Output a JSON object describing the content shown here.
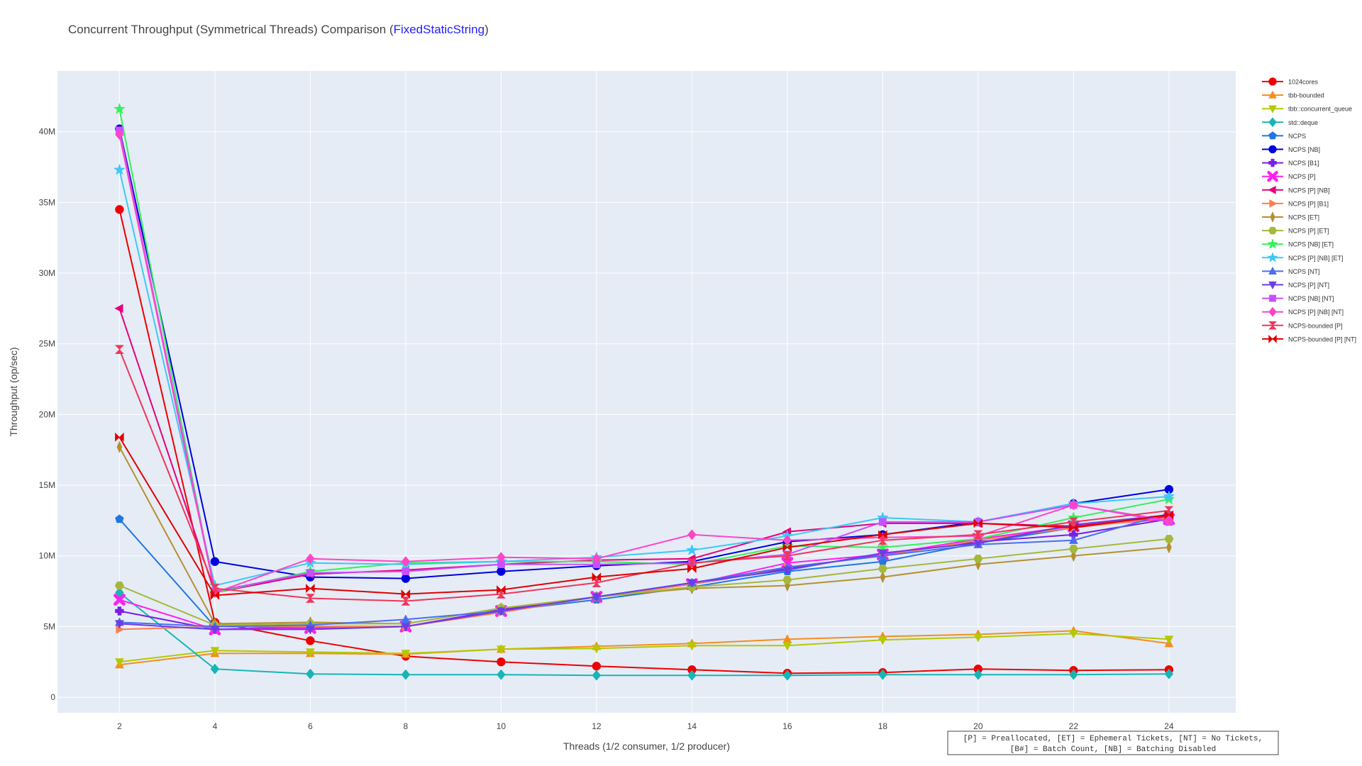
{
  "title": {
    "prefix": "Concurrent Throughput (Symmetrical Threads) Comparison (",
    "accent": "FixedStaticString",
    "suffix": ")",
    "accent_color": "#1f1fff"
  },
  "footnote": {
    "line1": "[P] = Preallocated, [ET] = Ephemeral Tickets, [NT] = No Tickets,",
    "line2": "[B#] = Batch Count, [NB] = Batching Disabled"
  },
  "chart_data": {
    "type": "line",
    "title": "Concurrent Throughput (Symmetrical Threads) Comparison (FixedStaticString)",
    "xlabel": "Threads (1/2 consumer, 1/2 producer)",
    "ylabel": "Throughput (op/sec)",
    "x": [
      2,
      4,
      6,
      8,
      10,
      12,
      14,
      16,
      18,
      20,
      22,
      24
    ],
    "xticks": [
      "2",
      "4",
      "6",
      "8",
      "10",
      "12",
      "14",
      "16",
      "18",
      "20",
      "22",
      "24"
    ],
    "xlim": [
      0.7,
      25.4
    ],
    "yticks": [
      0,
      5000000,
      10000000,
      15000000,
      20000000,
      25000000,
      30000000,
      35000000,
      40000000
    ],
    "ytick_labels": [
      "0",
      "5M",
      "10M",
      "15M",
      "20M",
      "25M",
      "30M",
      "35M",
      "40M"
    ],
    "ylim": [
      -1100000,
      44300000
    ],
    "grid": true,
    "legend_position": "right",
    "plot_bg": "#e5ecf6",
    "series": [
      {
        "name": "1024cores",
        "color": "#ee0000",
        "marker": "circle",
        "values": [
          34500000,
          5300000,
          4000000,
          2900000,
          2500000,
          2200000,
          1950000,
          1700000,
          1750000,
          2000000,
          1900000,
          1950000
        ]
      },
      {
        "name": "tbb-bounded",
        "color": "#f58d1f",
        "marker": "triangle-up",
        "values": [
          2300000,
          3100000,
          3100000,
          3050000,
          3400000,
          3600000,
          3800000,
          4100000,
          4300000,
          4450000,
          4700000,
          3800000
        ]
      },
      {
        "name": "tbb::concurrent_queue",
        "color": "#b5c800",
        "marker": "triangle-down",
        "values": [
          2500000,
          3300000,
          3200000,
          3100000,
          3400000,
          3450000,
          3650000,
          3650000,
          4050000,
          4250000,
          4500000,
          4100000
        ]
      },
      {
        "name": "std::deque",
        "color": "#17b5b5",
        "marker": "diamond",
        "values": [
          7400000,
          2000000,
          1650000,
          1600000,
          1600000,
          1550000,
          1550000,
          1550000,
          1600000,
          1600000,
          1600000,
          1650000
        ]
      },
      {
        "name": "NCPS",
        "color": "#1f77e4",
        "marker": "pentagon",
        "values": [
          12600000,
          5000000,
          5000000,
          5000000,
          6100000,
          6900000,
          7800000,
          8900000,
          9600000,
          10900000,
          12000000,
          12800000
        ]
      },
      {
        "name": "NCPS [NB]",
        "color": "#0000dd",
        "marker": "circle",
        "values": [
          40200000,
          9600000,
          8500000,
          8400000,
          8900000,
          9300000,
          9600000,
          11000000,
          11500000,
          12400000,
          13700000,
          14700000
        ]
      },
      {
        "name": "NCPS [B1]",
        "color": "#7a1fe6",
        "marker": "cross",
        "values": [
          6100000,
          4800000,
          5000000,
          5000000,
          6200000,
          7100000,
          8000000,
          9100000,
          10100000,
          11000000,
          11500000,
          12600000
        ]
      },
      {
        "name": "NCPS [P]",
        "color": "#ff1ff0",
        "marker": "x",
        "values": [
          6900000,
          4800000,
          4900000,
          5000000,
          6100000,
          7100000,
          8000000,
          9500000,
          10100000,
          11200000,
          12100000,
          12600000
        ]
      },
      {
        "name": "NCPS [P] [NB]",
        "color": "#e6007a",
        "marker": "triangle-left",
        "values": [
          27500000,
          7400000,
          8700000,
          9000000,
          9400000,
          9700000,
          9800000,
          11700000,
          12300000,
          12300000,
          12100000,
          12800000
        ]
      },
      {
        "name": "NCPS [P] [B1]",
        "color": "#ff7f50",
        "marker": "triangle-right",
        "values": [
          4800000,
          5000000,
          5000000,
          5000000,
          6000000,
          7100000,
          8000000,
          9200000,
          10000000,
          11100000,
          12000000,
          12700000
        ]
      },
      {
        "name": "NCPS [ET]",
        "color": "#b59030",
        "marker": "thin-diamond",
        "values": [
          17700000,
          5200000,
          5300000,
          5200000,
          6300000,
          7100000,
          7700000,
          7900000,
          8500000,
          9400000,
          10000000,
          10600000
        ]
      },
      {
        "name": "NCPS [P] [ET]",
        "color": "#a5b83a",
        "marker": "hexagon",
        "values": [
          7900000,
          5100000,
          5200000,
          5200000,
          6300000,
          7100000,
          7800000,
          8300000,
          9100000,
          9800000,
          10500000,
          11200000
        ]
      },
      {
        "name": "NCPS [NB] [ET]",
        "color": "#36f05a",
        "marker": "star",
        "values": [
          41600000,
          7400000,
          8900000,
          9500000,
          9600000,
          9600000,
          9400000,
          10700000,
          10600000,
          11200000,
          12700000,
          14000000
        ]
      },
      {
        "name": "NCPS [P] [NB] [ET]",
        "color": "#3ec8f5",
        "marker": "star",
        "values": [
          37300000,
          7900000,
          9500000,
          9400000,
          9600000,
          9900000,
          10400000,
          11400000,
          12700000,
          12400000,
          13700000,
          14200000
        ]
      },
      {
        "name": "NCPS [NT]",
        "color": "#4a6ef0",
        "marker": "triangle-up",
        "values": [
          5300000,
          5000000,
          5100000,
          5500000,
          6100000,
          7100000,
          8100000,
          9200000,
          10000000,
          10800000,
          11100000,
          13000000
        ]
      },
      {
        "name": "NCPS [P] [NT]",
        "color": "#6a3ee6",
        "marker": "triangle-down",
        "values": [
          5200000,
          4800000,
          4800000,
          5000000,
          6100000,
          7100000,
          8100000,
          9000000,
          10200000,
          10900000,
          12200000,
          12900000
        ]
      },
      {
        "name": "NCPS [NB] [NT]",
        "color": "#c850ff",
        "marker": "square",
        "values": [
          40100000,
          7500000,
          8800000,
          8900000,
          9400000,
          9400000,
          9500000,
          10100000,
          12400000,
          12400000,
          13600000,
          12400000
        ]
      },
      {
        "name": "NCPS [P] [NB] [NT]",
        "color": "#ff44c8",
        "marker": "diamond",
        "values": [
          39800000,
          7400000,
          9800000,
          9600000,
          9900000,
          9800000,
          11500000,
          11100000,
          11300000,
          11400000,
          13600000,
          12500000
        ]
      },
      {
        "name": "NCPS-bounded [P]",
        "color": "#f0365a",
        "marker": "hourglass",
        "values": [
          24600000,
          7700000,
          7000000,
          6800000,
          7300000,
          8100000,
          9500000,
          10000000,
          11100000,
          11500000,
          12400000,
          13200000
        ]
      },
      {
        "name": "NCPS-bounded [P] [NT]",
        "color": "#e00000",
        "marker": "bowtie",
        "values": [
          18400000,
          7200000,
          7700000,
          7300000,
          7600000,
          8500000,
          9100000,
          10600000,
          11500000,
          12300000,
          12000000,
          12900000
        ]
      }
    ]
  }
}
